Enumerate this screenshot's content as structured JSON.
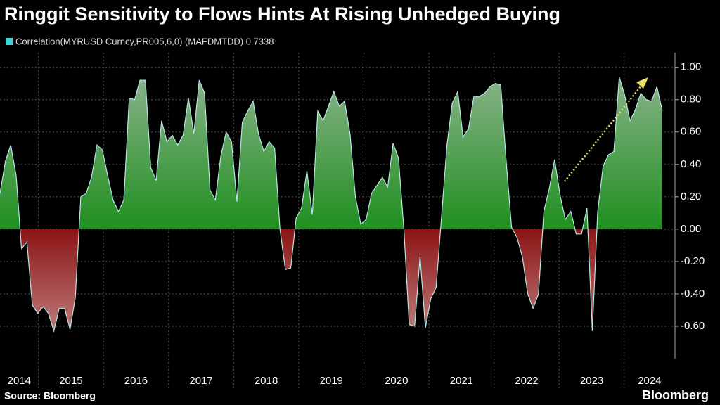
{
  "chart_data": {
    "type": "area",
    "title": "Ringgit Sensitivity to Flows Hints At Rising Unhedged Buying",
    "source": "Source: Bloomberg",
    "brand": "Bloomberg",
    "series": [
      {
        "name": "Correlation(MYRUSD Curncy,PR005,6,0) (MAFDMTDD) 0.7338",
        "color": "#3fd6d6",
        "values": [
          0.22,
          0.42,
          0.52,
          0.33,
          -0.12,
          -0.08,
          -0.47,
          -0.52,
          -0.48,
          -0.52,
          -0.63,
          -0.49,
          -0.49,
          -0.62,
          -0.42,
          0.2,
          0.22,
          0.32,
          0.52,
          0.49,
          0.33,
          0.18,
          0.11,
          0.18,
          0.81,
          0.8,
          0.92,
          0.92,
          0.38,
          0.3,
          0.67,
          0.54,
          0.58,
          0.52,
          0.58,
          0.81,
          0.59,
          0.92,
          0.84,
          0.24,
          0.18,
          0.45,
          0.6,
          0.54,
          0.17,
          0.66,
          0.73,
          0.79,
          0.59,
          0.48,
          0.54,
          0.5,
          0.0,
          -0.25,
          -0.24,
          0.07,
          0.13,
          0.36,
          0.09,
          0.73,
          0.67,
          0.76,
          0.85,
          0.76,
          0.79,
          0.59,
          0.2,
          0.03,
          0.06,
          0.22,
          0.27,
          0.32,
          0.26,
          0.53,
          0.44,
          0.0,
          -0.59,
          -0.6,
          -0.17,
          -0.61,
          -0.43,
          -0.36,
          0.08,
          0.52,
          0.78,
          0.85,
          0.57,
          0.62,
          0.82,
          0.82,
          0.84,
          0.88,
          0.9,
          0.89,
          0.42,
          0.01,
          -0.05,
          -0.17,
          -0.4,
          -0.49,
          -0.4,
          0.11,
          0.25,
          0.43,
          0.21,
          0.06,
          0.11,
          -0.03,
          -0.03,
          0.13,
          -0.63,
          0.11,
          0.39,
          0.46,
          0.48,
          0.94,
          0.83,
          0.67,
          0.74,
          0.84,
          0.8,
          0.79,
          0.88,
          0.73
        ]
      }
    ],
    "positive_color": "#1f8f1f",
    "negative_color": "#8c1515",
    "xlim": [
      2014.41,
      2024.78
    ],
    "xticks": [
      2014,
      2015,
      2016,
      2017,
      2018,
      2019,
      2020,
      2021,
      2022,
      2023,
      2024
    ],
    "ylim": [
      -0.8,
      1.09
    ],
    "yticks": [
      {
        "value": 1,
        "label": "1.00"
      },
      {
        "value": 0.8,
        "label": "0.80"
      },
      {
        "value": 0.6,
        "label": "0.60"
      },
      {
        "value": 0.4,
        "label": "0.40"
      },
      {
        "value": 0.2,
        "label": "0.20"
      },
      {
        "value": 0,
        "label": "0.00"
      },
      {
        "value": -0.2,
        "label": "-0.20"
      },
      {
        "value": -0.4,
        "label": "-0.40"
      },
      {
        "value": -0.6,
        "label": "-0.60"
      }
    ],
    "grid": true
  }
}
